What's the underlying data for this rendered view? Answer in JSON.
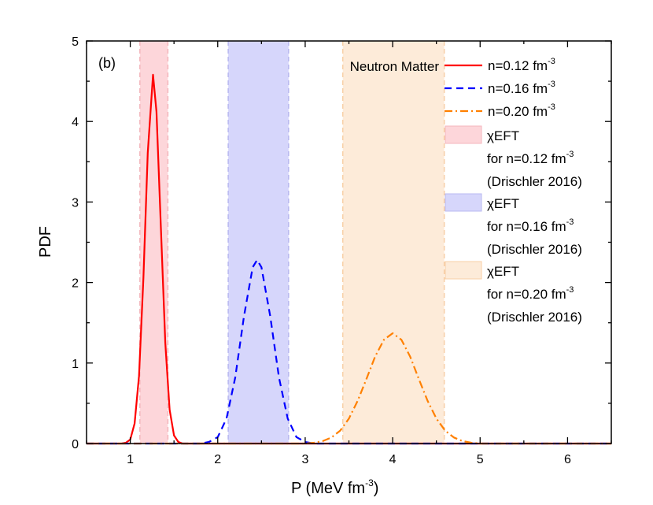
{
  "chart_data": {
    "type": "line",
    "panel_label": "(b)",
    "xlabel": "P (MeV fm",
    "xlabel_sup": "-3",
    "xlabel_end": ")",
    "ylabel": "PDF",
    "xlim": [
      0.5,
      6.5
    ],
    "ylim": [
      0,
      5
    ],
    "xticks": [
      "1",
      "2",
      "3",
      "4",
      "5",
      "6"
    ],
    "yticks": [
      "0",
      "1",
      "2",
      "3",
      "4",
      "5"
    ],
    "grid": false,
    "legend_title": "Neutron Matter",
    "legend_position": "top-right",
    "series": [
      {
        "name": "n=0.12 fm",
        "sup": "-3",
        "color": "#ff0000",
        "style": "solid",
        "x": [
          0.5,
          0.9,
          0.95,
          1.0,
          1.05,
          1.1,
          1.15,
          1.2,
          1.26,
          1.3,
          1.35,
          1.4,
          1.45,
          1.5,
          1.55,
          1.6,
          6.5
        ],
        "y": [
          0,
          0,
          0.01,
          0.05,
          0.25,
          0.84,
          2.06,
          3.61,
          4.58,
          4.12,
          2.68,
          1.25,
          0.42,
          0.1,
          0.02,
          0,
          0
        ]
      },
      {
        "name": "n=0.16 fm",
        "sup": "-3",
        "color": "#0000ff",
        "style": "dashed",
        "x": [
          0.5,
          1.8,
          1.9,
          2.0,
          2.1,
          2.2,
          2.3,
          2.4,
          2.45,
          2.5,
          2.6,
          2.7,
          2.8,
          2.9,
          3.0,
          3.1,
          6.5
        ],
        "y": [
          0,
          0,
          0.02,
          0.08,
          0.31,
          0.82,
          1.58,
          2.19,
          2.28,
          2.19,
          1.58,
          0.82,
          0.31,
          0.08,
          0.02,
          0,
          0
        ]
      },
      {
        "name": "n=0.20 fm",
        "sup": "-3",
        "color": "#ff8000",
        "style": "dashdot",
        "x": [
          0.5,
          3.0,
          3.1,
          3.2,
          3.3,
          3.4,
          3.5,
          3.6,
          3.7,
          3.8,
          3.9,
          4.0,
          4.1,
          4.2,
          4.3,
          4.4,
          4.5,
          4.6,
          4.7,
          4.8,
          4.9,
          5.0,
          6.5
        ],
        "y": [
          0,
          0,
          0.01,
          0.03,
          0.075,
          0.16,
          0.31,
          0.53,
          0.8,
          1.08,
          1.29,
          1.37,
          1.29,
          1.08,
          0.8,
          0.53,
          0.31,
          0.16,
          0.075,
          0.03,
          0.01,
          0,
          0
        ]
      }
    ],
    "bands": [
      {
        "label": "χEFT",
        "line2": "for n=0.12 fm",
        "sup": "-3",
        "line3": "(Drischler 2016)",
        "range": [
          1.11,
          1.43
        ],
        "fill": "#fdd6da",
        "edge": "#f4b6bc"
      },
      {
        "label": "χEFT",
        "line2": "for n=0.16 fm",
        "sup": "-3",
        "line3": "(Drischler 2016)",
        "range": [
          2.12,
          2.81
        ],
        "fill": "#d6d6fb",
        "edge": "#b8b8f0"
      },
      {
        "label": "χEFT",
        "line2": "for n=0.20 fm",
        "sup": "-3",
        "line3": "(Drischler 2016)",
        "range": [
          3.43,
          4.59
        ],
        "fill": "#fdebd9",
        "edge": "#f8cfa6"
      }
    ]
  }
}
